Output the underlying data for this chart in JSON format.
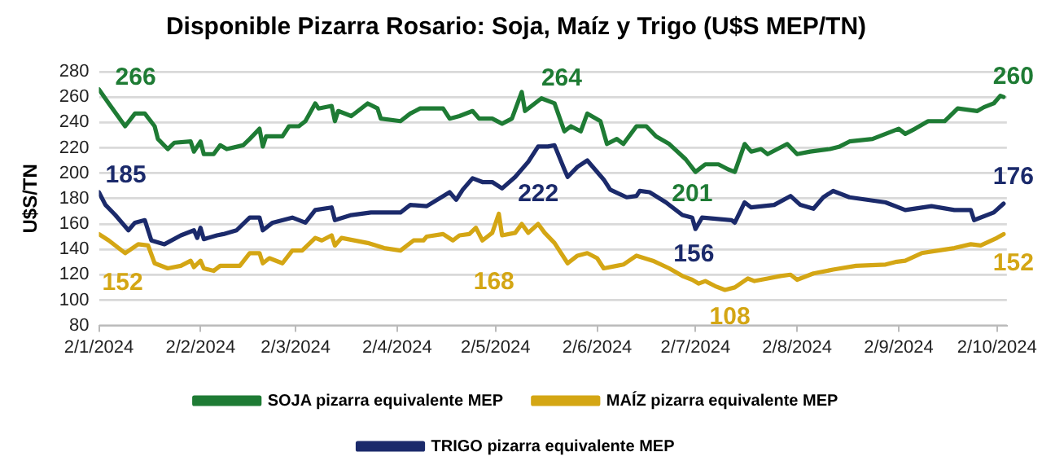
{
  "chart_data": {
    "type": "line",
    "title": "Disponible Pizarra Rosario: Soja, Maíz y Trigo (U$S MEP/TN)",
    "ylabel": "U$S/TN",
    "xlim": [
      "2024-01-02",
      "2024-10-05"
    ],
    "xticks": [
      {
        "value": "2024-01-02",
        "label": "2/1/2024"
      },
      {
        "value": "2024-02-02",
        "label": "2/2/2024"
      },
      {
        "value": "2024-03-02",
        "label": "2/3/2024"
      },
      {
        "value": "2024-04-02",
        "label": "2/4/2024"
      },
      {
        "value": "2024-05-02",
        "label": "2/5/2024"
      },
      {
        "value": "2024-06-02",
        "label": "2/6/2024"
      },
      {
        "value": "2024-07-02",
        "label": "2/7/2024"
      },
      {
        "value": "2024-08-02",
        "label": "2/8/2024"
      },
      {
        "value": "2024-09-02",
        "label": "2/9/2024"
      },
      {
        "value": "2024-10-02",
        "label": "2/10/2024"
      }
    ],
    "ylim": [
      80,
      280
    ],
    "yticks": [
      80,
      100,
      120,
      140,
      160,
      180,
      200,
      220,
      240,
      260,
      280
    ],
    "grid": "y",
    "legend": "bottom",
    "marker": "none",
    "line_style": "solid",
    "series": [
      {
        "name": "SOJA pizarra equivalente MEP",
        "color": "#1e7b34",
        "x": [
          "2024-01-02",
          "2024-01-05",
          "2024-01-10",
          "2024-01-13",
          "2024-01-16",
          "2024-01-19",
          "2024-01-20",
          "2024-01-23",
          "2024-01-25",
          "2024-01-30",
          "2024-01-31",
          "2024-02-02",
          "2024-02-03",
          "2024-02-06",
          "2024-02-08",
          "2024-02-10",
          "2024-02-15",
          "2024-02-17",
          "2024-02-20",
          "2024-02-21",
          "2024-02-22",
          "2024-02-27",
          "2024-02-29",
          "2024-03-03",
          "2024-03-05",
          "2024-03-08",
          "2024-03-09",
          "2024-03-13",
          "2024-03-14",
          "2024-03-15",
          "2024-03-19",
          "2024-03-22",
          "2024-03-24",
          "2024-03-27",
          "2024-03-28",
          "2024-04-03",
          "2024-04-06",
          "2024-04-09",
          "2024-04-16",
          "2024-04-18",
          "2024-04-21",
          "2024-04-25",
          "2024-04-27",
          "2024-05-01",
          "2024-05-04",
          "2024-05-07",
          "2024-05-10",
          "2024-05-11",
          "2024-05-16",
          "2024-05-20",
          "2024-05-23",
          "2024-05-25",
          "2024-05-28",
          "2024-05-30",
          "2024-06-03",
          "2024-06-05",
          "2024-06-08",
          "2024-06-10",
          "2024-06-14",
          "2024-06-17",
          "2024-06-20",
          "2024-06-24",
          "2024-06-29",
          "2024-07-02",
          "2024-07-05",
          "2024-07-09",
          "2024-07-12",
          "2024-07-14",
          "2024-07-17",
          "2024-07-19",
          "2024-07-22",
          "2024-07-24",
          "2024-07-27",
          "2024-07-30",
          "2024-08-02",
          "2024-08-06",
          "2024-08-12",
          "2024-08-15",
          "2024-08-18",
          "2024-08-25",
          "2024-08-29",
          "2024-09-02",
          "2024-09-04",
          "2024-09-07",
          "2024-09-11",
          "2024-09-16",
          "2024-09-20",
          "2024-09-26",
          "2024-09-28",
          "2024-10-01",
          "2024-10-03",
          "2024-10-04"
        ],
        "values": [
          266,
          255,
          237,
          247,
          247,
          237,
          227,
          219,
          224,
          225,
          217,
          225,
          215,
          215,
          222,
          219,
          222,
          227,
          235,
          221,
          229,
          229,
          237,
          237,
          241,
          255,
          251,
          253,
          241,
          249,
          245,
          251,
          255,
          251,
          243,
          241,
          247,
          251,
          251,
          243,
          245,
          249,
          243,
          243,
          239,
          243,
          264,
          249,
          259,
          255,
          233,
          237,
          233,
          247,
          241,
          223,
          227,
          223,
          237,
          237,
          229,
          223,
          211,
          201,
          207,
          207,
          203,
          201,
          223,
          217,
          219,
          215,
          219,
          223,
          215,
          217,
          219,
          221,
          225,
          227,
          231,
          235,
          231,
          235,
          241,
          241,
          251,
          249,
          252,
          255,
          261,
          260
        ]
      },
      {
        "name": "MAÍZ pizarra equivalente MEP",
        "color": "#d4a614",
        "x": [
          "2024-01-02",
          "2024-01-05",
          "2024-01-10",
          "2024-01-14",
          "2024-01-17",
          "2024-01-19",
          "2024-01-23",
          "2024-01-27",
          "2024-01-30",
          "2024-01-31",
          "2024-02-02",
          "2024-02-03",
          "2024-02-06",
          "2024-02-08",
          "2024-02-14",
          "2024-02-17",
          "2024-02-20",
          "2024-02-21",
          "2024-02-23",
          "2024-02-27",
          "2024-03-01",
          "2024-03-04",
          "2024-03-08",
          "2024-03-10",
          "2024-03-13",
          "2024-03-14",
          "2024-03-16",
          "2024-03-24",
          "2024-03-29",
          "2024-04-03",
          "2024-04-07",
          "2024-04-10",
          "2024-04-11",
          "2024-04-16",
          "2024-04-19",
          "2024-04-21",
          "2024-04-24",
          "2024-04-26",
          "2024-04-28",
          "2024-04-30",
          "2024-05-01",
          "2024-05-03",
          "2024-05-04",
          "2024-05-08",
          "2024-05-10",
          "2024-05-12",
          "2024-05-15",
          "2024-05-17",
          "2024-05-20",
          "2024-05-24",
          "2024-05-27",
          "2024-05-30",
          "2024-06-02",
          "2024-06-04",
          "2024-06-08",
          "2024-06-10",
          "2024-06-14",
          "2024-06-19",
          "2024-06-24",
          "2024-06-28",
          "2024-07-01",
          "2024-07-03",
          "2024-07-05",
          "2024-07-08",
          "2024-07-11",
          "2024-07-14",
          "2024-07-18",
          "2024-07-20",
          "2024-07-24",
          "2024-07-28",
          "2024-07-31",
          "2024-08-02",
          "2024-08-07",
          "2024-08-13",
          "2024-08-20",
          "2024-08-29",
          "2024-09-01",
          "2024-09-04",
          "2024-09-09",
          "2024-09-14",
          "2024-09-19",
          "2024-09-24",
          "2024-09-27",
          "2024-10-02",
          "2024-10-04"
        ],
        "values": [
          152,
          147,
          137,
          144,
          143,
          129,
          125,
          127,
          131,
          126,
          131,
          125,
          123,
          127,
          127,
          137,
          137,
          129,
          133,
          129,
          139,
          139,
          149,
          147,
          151,
          143,
          149,
          145,
          141,
          139,
          147,
          147,
          150,
          152,
          147,
          151,
          152,
          157,
          147,
          151,
          153,
          168,
          151,
          153,
          160,
          153,
          160,
          153,
          145,
          129,
          135,
          137,
          133,
          125,
          127,
          128,
          135,
          131,
          125,
          119,
          116,
          113,
          115,
          111,
          108,
          110,
          117,
          115,
          117,
          119,
          120,
          116,
          121,
          124,
          127,
          128,
          130,
          131,
          137,
          139,
          141,
          144,
          143,
          149,
          152
        ]
      },
      {
        "name": "TRIGO pizarra equivalente MEP",
        "color": "#1b2a6b",
        "x": [
          "2024-01-02",
          "2024-01-04",
          "2024-01-07",
          "2024-01-11",
          "2024-01-13",
          "2024-01-16",
          "2024-01-18",
          "2024-01-22",
          "2024-01-27",
          "2024-01-31",
          "2024-02-01",
          "2024-02-02",
          "2024-02-03",
          "2024-02-07",
          "2024-02-09",
          "2024-02-13",
          "2024-02-17",
          "2024-02-20",
          "2024-02-21",
          "2024-02-24",
          "2024-03-01",
          "2024-03-05",
          "2024-03-08",
          "2024-03-13",
          "2024-03-14",
          "2024-03-19",
          "2024-03-25",
          "2024-04-03",
          "2024-04-06",
          "2024-04-11",
          "2024-04-18",
          "2024-04-20",
          "2024-04-22",
          "2024-04-25",
          "2024-04-28",
          "2024-05-01",
          "2024-05-04",
          "2024-05-08",
          "2024-05-12",
          "2024-05-15",
          "2024-05-18",
          "2024-05-20",
          "2024-05-23",
          "2024-05-24",
          "2024-05-27",
          "2024-05-30",
          "2024-05-31",
          "2024-06-04",
          "2024-06-06",
          "2024-06-11",
          "2024-06-14",
          "2024-06-15",
          "2024-06-18",
          "2024-06-23",
          "2024-06-28",
          "2024-07-01",
          "2024-07-02",
          "2024-07-04",
          "2024-07-13",
          "2024-07-14",
          "2024-07-17",
          "2024-07-19",
          "2024-07-26",
          "2024-07-31",
          "2024-08-03",
          "2024-08-07",
          "2024-08-10",
          "2024-08-13",
          "2024-08-18",
          "2024-08-29",
          "2024-09-04",
          "2024-09-12",
          "2024-09-19",
          "2024-09-24",
          "2024-09-25",
          "2024-10-01",
          "2024-10-04"
        ],
        "values": [
          185,
          175,
          167,
          155,
          161,
          163,
          147,
          144,
          151,
          155,
          149,
          157,
          148,
          151,
          152,
          155,
          165,
          165,
          155,
          161,
          165,
          161,
          171,
          173,
          163,
          167,
          169,
          169,
          175,
          174,
          185,
          179,
          187,
          196,
          193,
          193,
          188,
          197,
          209,
          221,
          221,
          222,
          203,
          197,
          205,
          210,
          207,
          195,
          187,
          181,
          182,
          186,
          185,
          177,
          167,
          165,
          156,
          165,
          163,
          161,
          177,
          173,
          175,
          182,
          175,
          172,
          181,
          186,
          181,
          177,
          171,
          174,
          171,
          171,
          163,
          169,
          176
        ]
      }
    ],
    "annotations": [
      {
        "text": "266",
        "x": "2024-01-02",
        "y": 266
      },
      {
        "text": "185",
        "x": "2024-01-02",
        "y": 185
      },
      {
        "text": "152",
        "x": "2024-01-02",
        "y": 152
      },
      {
        "text": "168",
        "x": "2024-05-03",
        "y": 168
      },
      {
        "text": "264",
        "x": "2024-05-10",
        "y": 264
      },
      {
        "text": "222",
        "x": "2024-05-20",
        "y": 222
      },
      {
        "text": "201",
        "x": "2024-07-02",
        "y": 201
      },
      {
        "text": "156",
        "x": "2024-07-02",
        "y": 156
      },
      {
        "text": "108",
        "x": "2024-07-11",
        "y": 108
      },
      {
        "text": "260",
        "x": "2024-10-04",
        "y": 260
      },
      {
        "text": "176",
        "x": "2024-10-04",
        "y": 176
      },
      {
        "text": "152",
        "x": "2024-10-04",
        "y": 152
      }
    ]
  }
}
